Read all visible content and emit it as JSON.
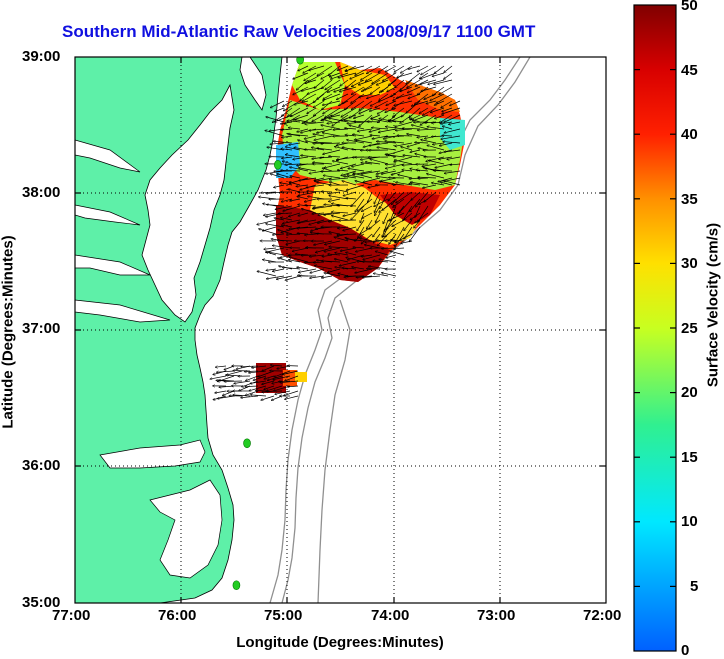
{
  "title": "Southern Mid-Atlantic Raw Velocities 2008/09/17 1100 GMT",
  "x_axis": {
    "label": "Longitude (Degrees:Minutes)",
    "ticks": [
      "77:00",
      "76:00",
      "75:00",
      "74:00",
      "73:00",
      "72:00"
    ]
  },
  "y_axis": {
    "label": "Latitude (Degrees:Minutes)",
    "ticks": [
      "39:00",
      "38:00",
      "37:00",
      "36:00",
      "35:00"
    ]
  },
  "colorbar": {
    "label": "Surface Velocity (cm/s)",
    "ticks": [
      "50",
      "45",
      "40",
      "35",
      "30",
      "25",
      "20",
      "15",
      "10",
      "5",
      "0"
    ],
    "min": 0,
    "max": 50
  },
  "colors": {
    "land": "#5ef0a8",
    "title": "#1010e0",
    "station": "#22cc22"
  },
  "map": {
    "lon_range": [
      -77,
      -72
    ],
    "lat_range": [
      35,
      39
    ],
    "grid": true
  },
  "stations": [
    {
      "lon": -74.88,
      "lat": 38.98
    },
    {
      "lon": -75.09,
      "lat": 38.21
    },
    {
      "lon": -75.38,
      "lat": 36.17
    },
    {
      "lon": -75.48,
      "lat": 35.13
    }
  ]
}
